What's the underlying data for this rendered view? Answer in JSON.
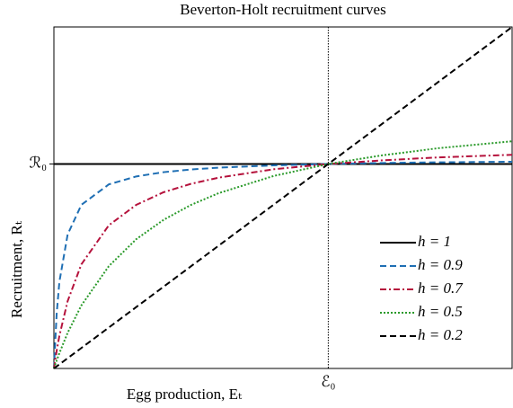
{
  "chart_data": {
    "type": "line",
    "title": "Beverton-Holt recruitment curves",
    "xlabel": "Egg production, Eₜ",
    "ylabel": "Recruitment, Rₜ",
    "x": [
      0,
      0.01,
      0.02,
      0.05,
      0.1,
      0.2,
      0.3,
      0.4,
      0.5,
      0.6,
      0.8,
      1.0,
      1.2,
      1.4,
      1.67
    ],
    "xlim": [
      0,
      1.67
    ],
    "ylim": [
      0,
      1.67
    ],
    "xticks": [
      {
        "value": 1,
        "label": "ℰ₀"
      }
    ],
    "yticks": [
      {
        "value": 1,
        "label": "ℛ₀"
      }
    ],
    "legend": "lower right",
    "series": [
      {
        "name": "h = 1",
        "color": "#000000",
        "dash": "solid",
        "values": [
          1,
          1,
          1,
          1,
          1,
          1,
          1,
          1,
          1,
          1,
          1,
          1,
          1,
          1,
          1
        ]
      },
      {
        "name": "h = 0.9",
        "color": "#1f6fb4",
        "dash": "dashed",
        "values": [
          0,
          0.267,
          0.424,
          0.655,
          0.8,
          0.9,
          0.939,
          0.96,
          0.973,
          0.982,
          0.993,
          1,
          1.005,
          1.008,
          1.011
        ]
      },
      {
        "name": "h = 0.7",
        "color": "#b5123c",
        "dash": "dashdot",
        "values": [
          0,
          0.086,
          0.16,
          0.329,
          0.509,
          0.7,
          0.8,
          0.862,
          0.903,
          0.933,
          0.974,
          1,
          1.018,
          1.032,
          1.045
        ]
      },
      {
        "name": "h = 0.5",
        "color": "#2a9a2a",
        "dash": "dotted",
        "values": [
          0,
          0.039,
          0.075,
          0.174,
          0.308,
          0.5,
          0.632,
          0.727,
          0.8,
          0.857,
          0.941,
          1,
          1.043,
          1.077,
          1.111
        ]
      },
      {
        "name": "h = 0.2",
        "color": "#000000",
        "dash": "dashed",
        "values": [
          0,
          0.01,
          0.02,
          0.05,
          0.1,
          0.2,
          0.3,
          0.4,
          0.5,
          0.6,
          0.8,
          1.0,
          1.2,
          1.4,
          1.67
        ]
      }
    ]
  }
}
